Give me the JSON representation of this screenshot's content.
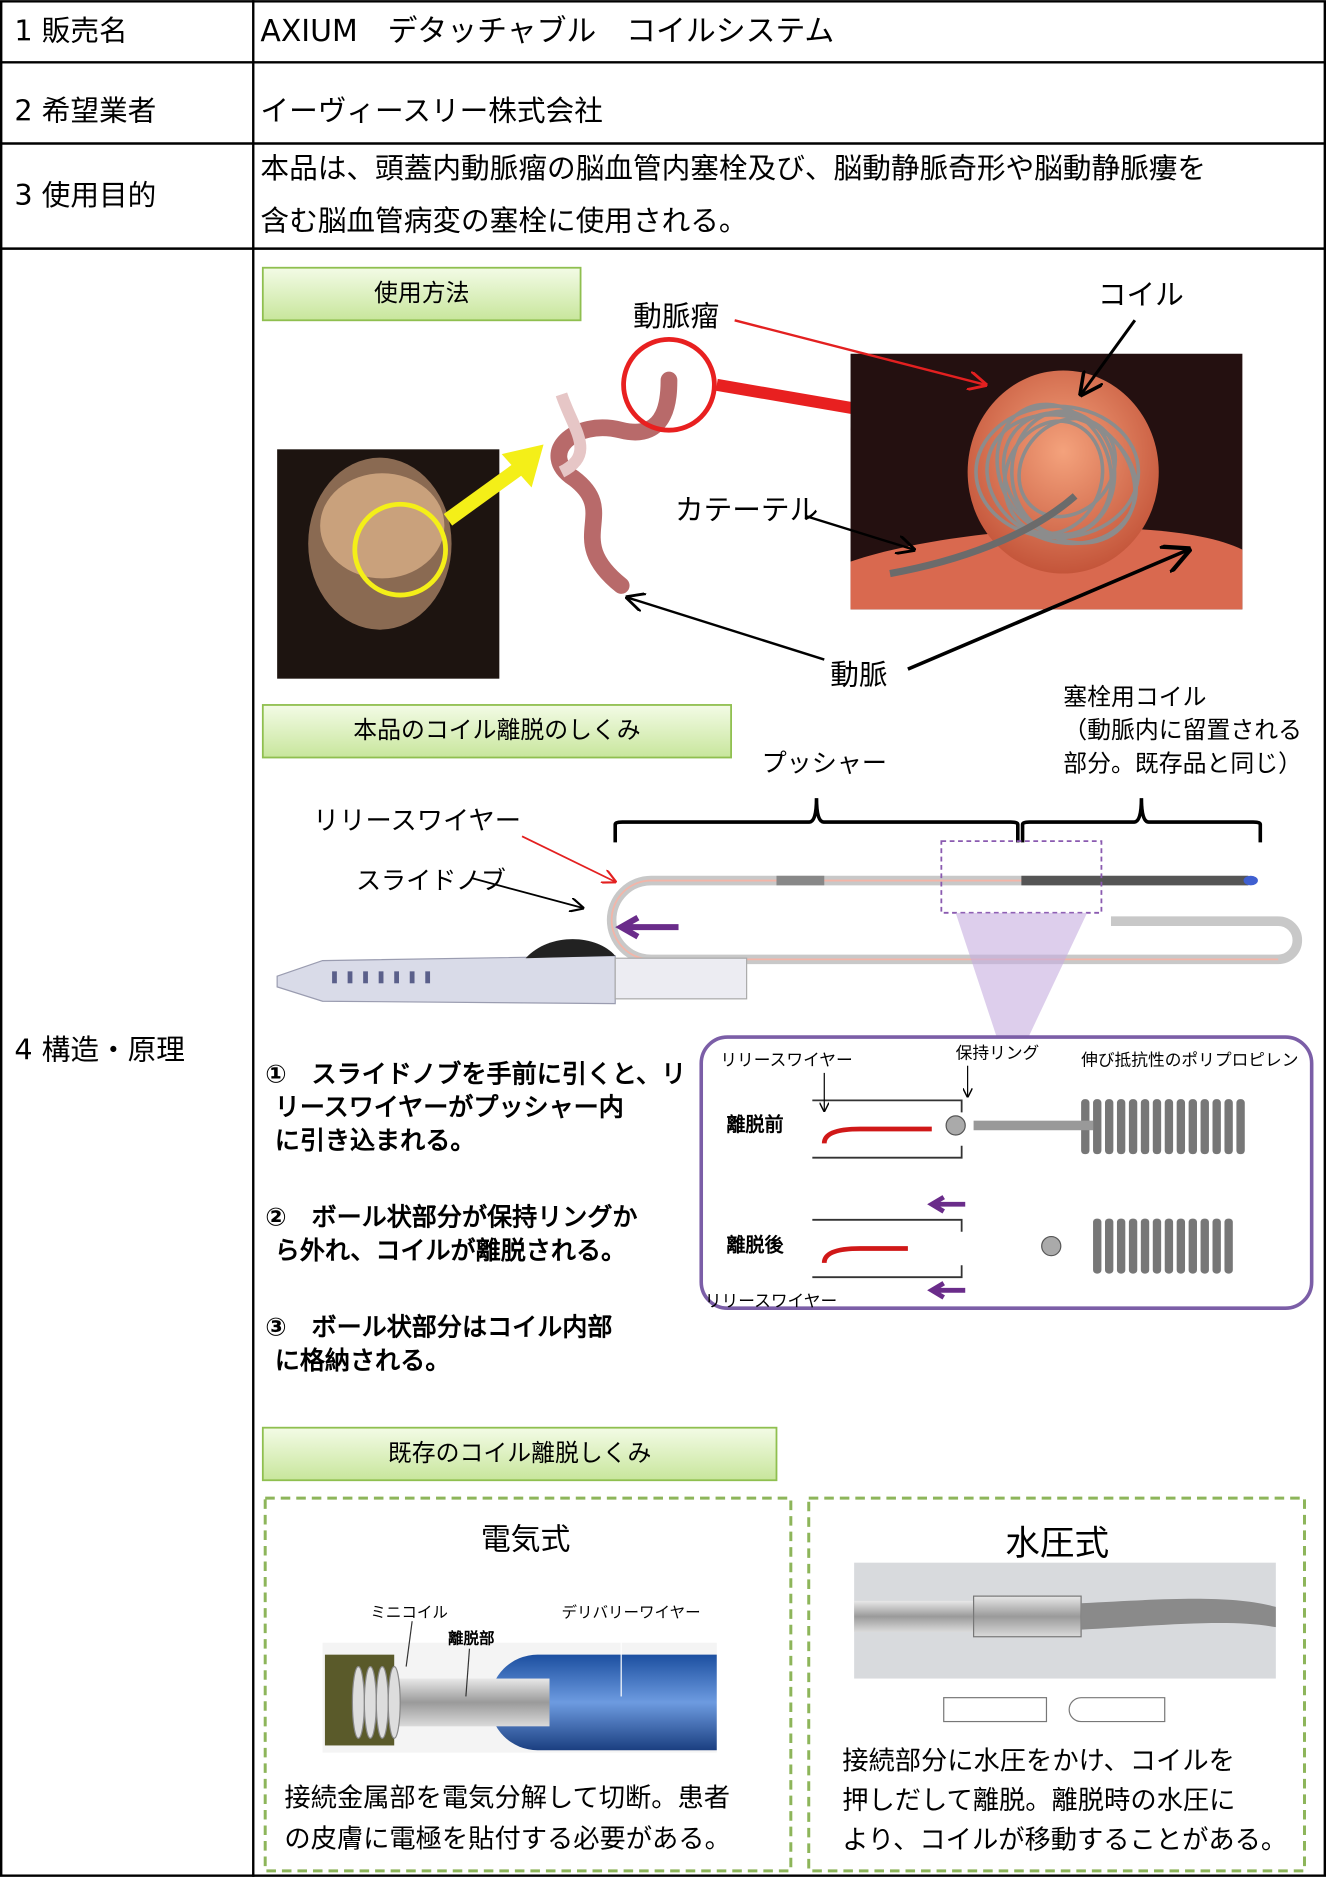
{
  "rows": [
    {
      "label": "1 販売名",
      "lines": [
        "AXIUM　デタッチャブル　コイルシステム"
      ]
    },
    {
      "label": "2 希望業者",
      "lines": [
        "イーヴィースリー株式会社"
      ]
    },
    {
      "label": "3 使用目的",
      "lines": [
        "本品は、頭蓋内動脈瘤の脳血管内塞栓及び、脳動静脈奇形や脳動静脈瘻を",
        "含む脳血管病変の塞栓に使用される。"
      ]
    },
    {
      "label": "4 構造・原理"
    }
  ],
  "usage": {
    "title": "使用方法",
    "aneurysm": "動脈瘤",
    "coil": "コイル",
    "catheter": "カテーテル",
    "artery": "動脈"
  },
  "mechanism": {
    "title": "本品のコイル離脱のしくみ",
    "pusher": "プッシャー",
    "embolic_coil": [
      "塞栓用コイル",
      "（動脈内に留置される",
      "部分。既存品と同じ）"
    ],
    "release_wire": "リリースワイヤー",
    "slide_knob": "スライドノブ",
    "steps": [
      [
        "①　スライドノブを手前に引くと、リ",
        "リースワイヤーがプッシャー内",
        "に引き込まれる。"
      ],
      [
        "②　ボール状部分が保持リングか",
        "ら外れ、コイルが離脱される。"
      ],
      [
        "③　ボール状部分はコイル内部",
        "に格納される。"
      ]
    ],
    "detail": {
      "release_wire_top": "リリースワイヤー",
      "holding_ring": "保持リング",
      "polypropylene": "伸び抵抗性のポリプロピレン",
      "before": "離脱前",
      "after": "離脱後",
      "release_wire_bottom": "リリースワイヤー"
    }
  },
  "existing": {
    "title": "既存のコイル離脱しくみ",
    "electric": {
      "title": "電気式",
      "mini_coil": "ミニコイル",
      "detach": "離脱部",
      "delivery_wire": "デリバリーワイヤー",
      "lines": [
        "接続金属部を電気分解して切断。患者",
        "の皮膚に電極を貼付する必要がある。"
      ]
    },
    "hydraulic": {
      "title": "水圧式",
      "lines": [
        "接続部分に水圧をかけ、コイルを",
        "押しだして離脱。離脱時の水圧に",
        "より、コイルが移動することがある。"
      ]
    }
  }
}
